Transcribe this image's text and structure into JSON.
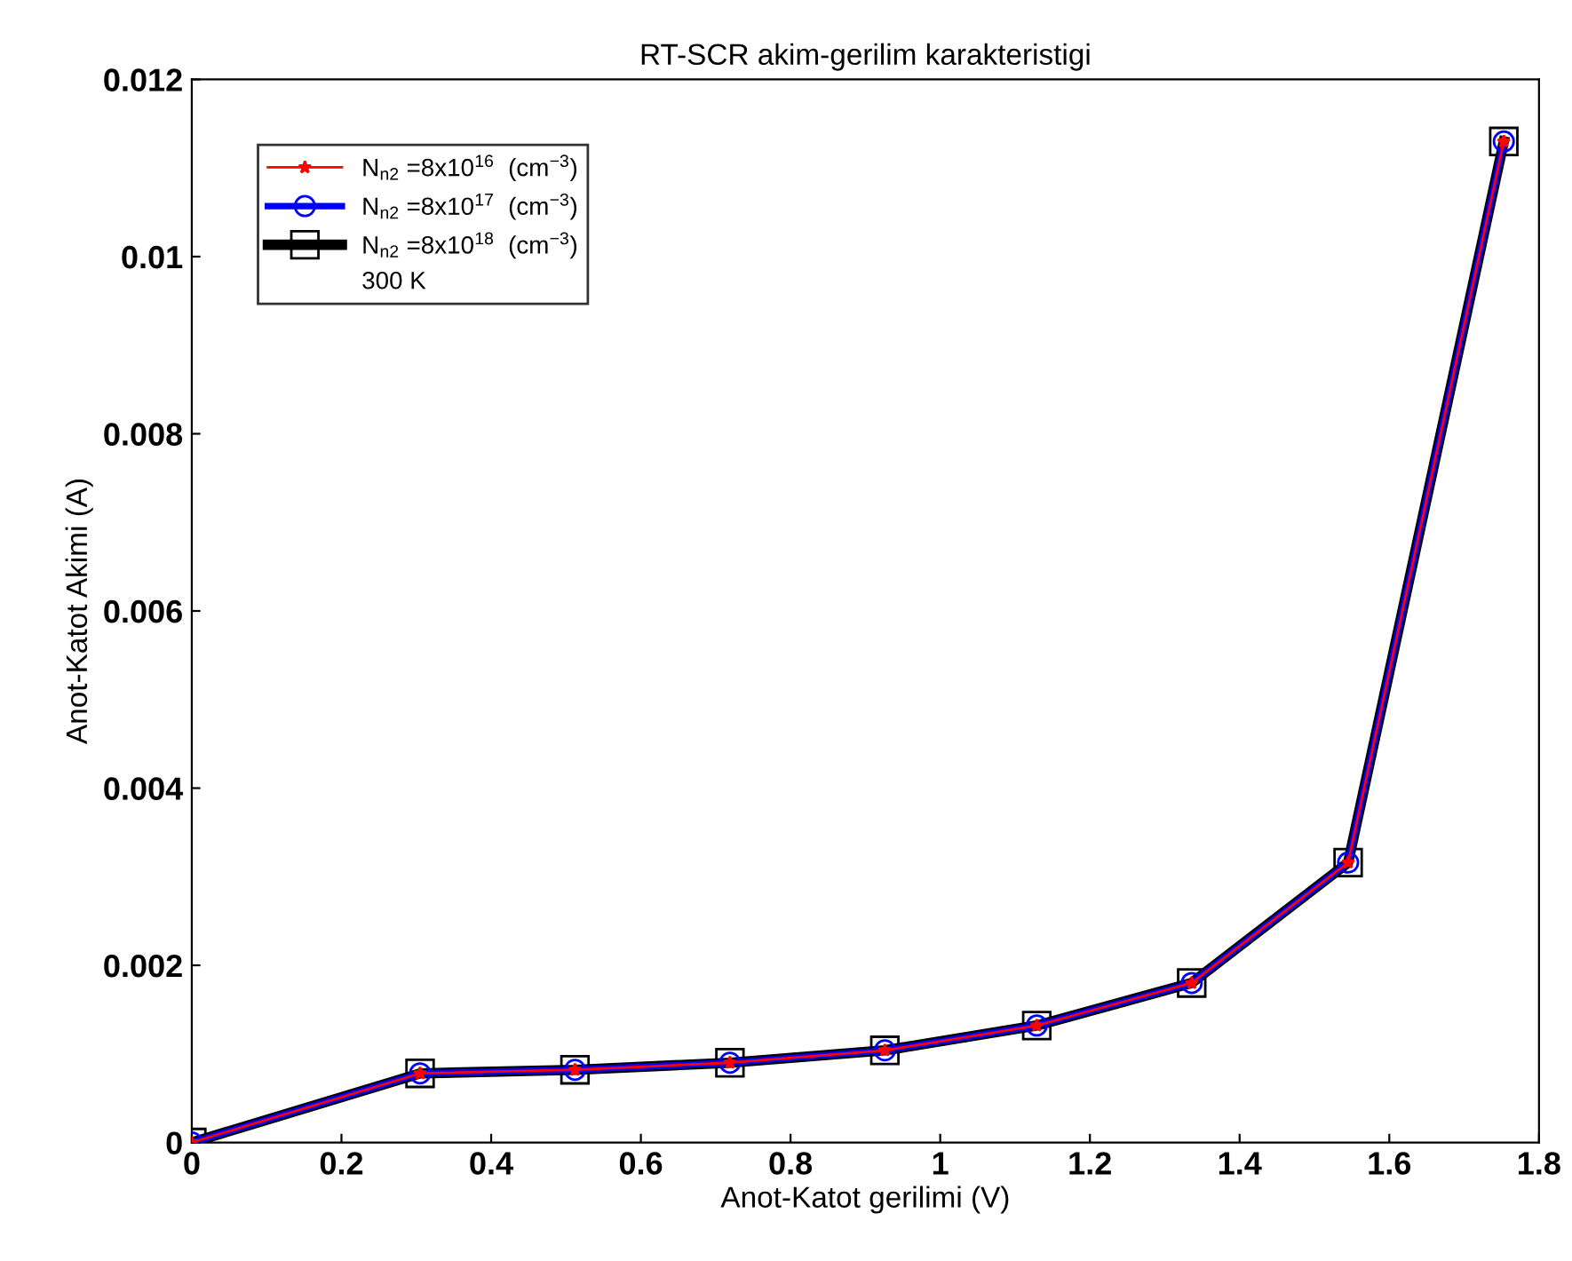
{
  "chart_data": {
    "type": "line",
    "title": "RT-SCR akim-gerilim karakteristigi",
    "xlabel": "Anot-Katot gerilimi (V)",
    "ylabel": "Anot-Katot Akimi (A)",
    "x": [
      0,
      0.305,
      0.512,
      0.719,
      0.926,
      1.129,
      1.336,
      1.545,
      1.753
    ],
    "series": [
      {
        "name": "N$_{n2}$ =8x10$^{16}$  (cm$^{−3}$)",
        "color": "#ff0000",
        "marker": "star",
        "values": [
          0,
          0.00078,
          0.00082,
          0.0009,
          0.00104,
          0.00132,
          0.0018,
          0.00316,
          0.0113
        ]
      },
      {
        "name": "N$_{n2}$ =8x10$^{17}$  (cm$^{−3}$)",
        "color": "#0000ff",
        "marker": "circle",
        "values": [
          0,
          0.00078,
          0.00082,
          0.0009,
          0.00104,
          0.00132,
          0.0018,
          0.00316,
          0.0113
        ]
      },
      {
        "name": "N$_{n2}$ =8x10$^{18}$  (cm$^{−3}$)",
        "color": "#000000",
        "marker": "square",
        "values": [
          0,
          0.00078,
          0.00082,
          0.0009,
          0.00104,
          0.00132,
          0.0018,
          0.00316,
          0.0113
        ]
      }
    ],
    "annotations": [
      "300 K"
    ],
    "xlim": [
      0,
      1.8
    ],
    "xticks": [
      0,
      0.2,
      0.4,
      0.6,
      0.8,
      1,
      1.2,
      1.4,
      1.6,
      1.8
    ],
    "ylim": [
      0,
      0.012
    ],
    "yticks": [
      0,
      0.002,
      0.004,
      0.006,
      0.008,
      0.01,
      0.012
    ],
    "legend": "top left",
    "grid": false,
    "line_style": "solid"
  }
}
